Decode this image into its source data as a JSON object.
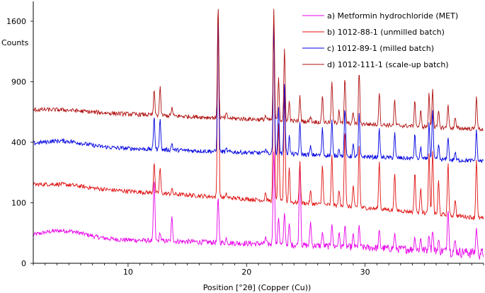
{
  "chart_data": {
    "type": "line",
    "xlabel": "Position [°2θ] (Copper (Cu))",
    "ylabel": "Counts",
    "xlim": [
      2,
      40
    ],
    "x_ticks": [
      10,
      20,
      30
    ],
    "y_ticks": [
      0,
      100,
      400,
      900,
      1600
    ],
    "y_scale": "sqrt",
    "grid": false,
    "legend_position": "top-right",
    "peaks": [
      12.2,
      12.7,
      13.7,
      17.6,
      18.3,
      21.6,
      22.3,
      22.7,
      23.2,
      23.6,
      24.5,
      25.4,
      26.4,
      27.2,
      27.8,
      28.3,
      29.0,
      29.5,
      31.2,
      32.5,
      34.2,
      34.7,
      35.4,
      35.7,
      36.2,
      37.0,
      37.6,
      39.4
    ],
    "series": [
      {
        "name": "a) Metformin hydrochloride (MET)",
        "color": "#e800e8",
        "baseline_start": 18,
        "baseline_end": 3,
        "peak_heights": [
          175,
          12,
          45,
          105,
          6,
          8,
          330,
          48,
          60,
          32,
          270,
          38,
          18,
          35,
          18,
          30,
          15,
          30,
          22,
          18,
          14,
          12,
          18,
          25,
          10,
          75,
          10,
          30
        ]
      },
      {
        "name": "b) 1012-88-1 (unmilled batch)",
        "color": "#e01010",
        "baseline_start": 165,
        "baseline_end": 55,
        "peak_heights": [
          145,
          115,
          20,
          1560,
          12,
          30,
          1500,
          430,
          680,
          150,
          180,
          45,
          175,
          230,
          60,
          400,
          80,
          290,
          200,
          150,
          155,
          90,
          260,
          280,
          120,
          210,
          50,
          240
        ]
      },
      {
        "name": "c) 1012-89-1 (milled batch)",
        "color": "#0000e0",
        "baseline_start": 380,
        "baseline_end": 285,
        "peak_heights": [
          240,
          230,
          45,
          1350,
          18,
          35,
          1250,
          330,
          560,
          120,
          210,
          50,
          180,
          240,
          50,
          340,
          70,
          300,
          180,
          160,
          155,
          70,
          240,
          350,
          90,
          150,
          45,
          200
        ]
      },
      {
        "name": "d) 1012-111-1 (scale-up batch)",
        "color": "#b01010",
        "baseline_start": 640,
        "baseline_end": 490,
        "peak_heights": [
          215,
          250,
          70,
          1250,
          35,
          35,
          1200,
          390,
          700,
          160,
          210,
          50,
          230,
          370,
          110,
          400,
          90,
          480,
          280,
          210,
          210,
          120,
          275,
          330,
          130,
          200,
          80,
          280
        ]
      }
    ]
  }
}
